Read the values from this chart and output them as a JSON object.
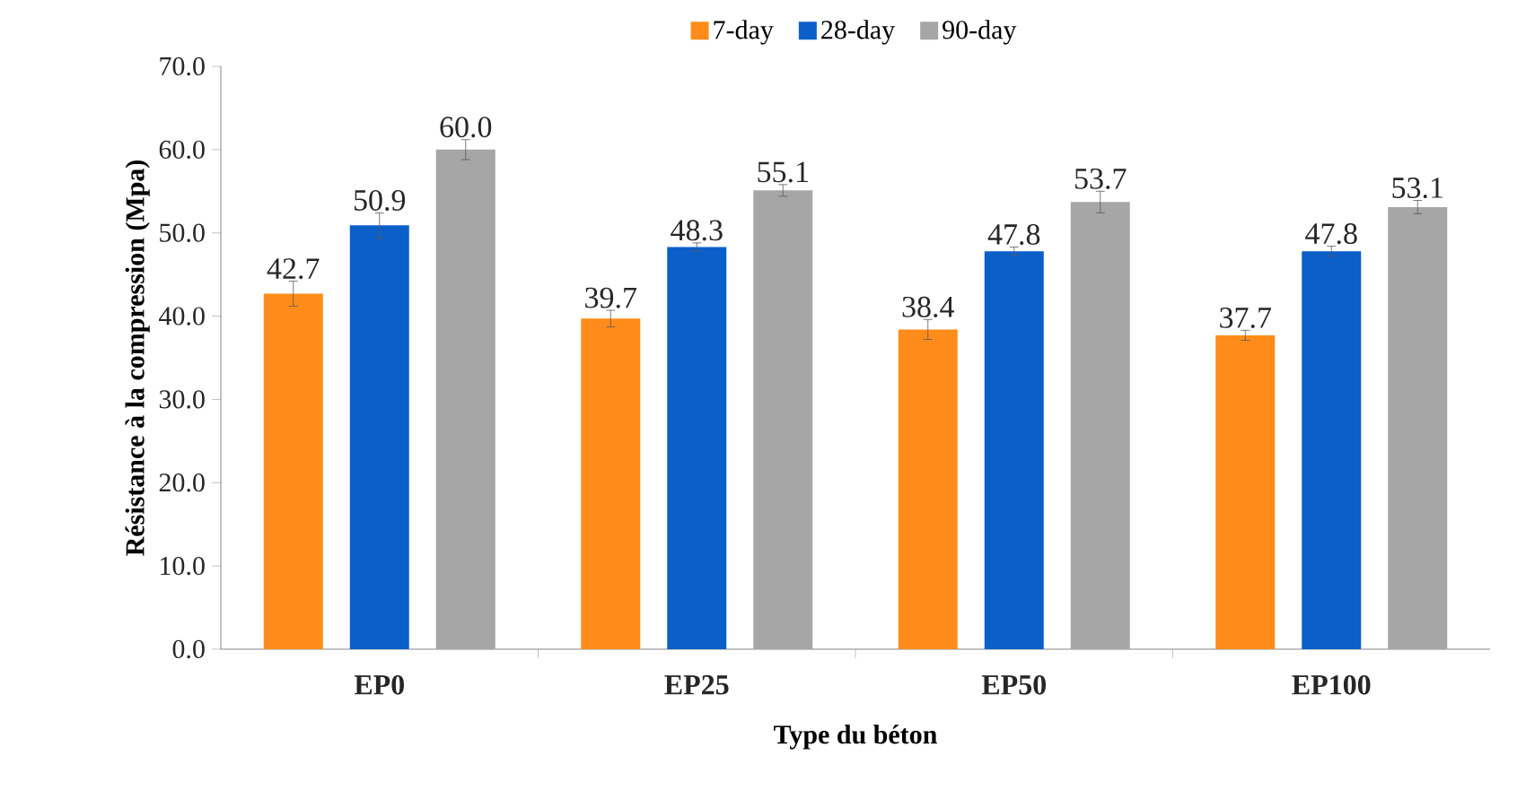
{
  "chart_data": {
    "type": "bar",
    "xlabel": "Type du béton",
    "ylabel": "Résistance à la compression (Mpa)",
    "categories": [
      "EP0",
      "EP25",
      "EP50",
      "EP100"
    ],
    "series": [
      {
        "name": "7-day",
        "color": "#ff8c1a",
        "values": [
          42.7,
          39.7,
          38.4,
          37.7
        ],
        "errors": [
          1.5,
          1.0,
          1.2,
          0.6
        ],
        "value_labels": [
          "42.7",
          "39.7",
          "38.4",
          "37.7"
        ]
      },
      {
        "name": "28-day",
        "color": "#0b5fc9",
        "values": [
          50.9,
          48.3,
          47.8,
          47.8
        ],
        "errors": [
          1.5,
          0.5,
          0.5,
          0.6
        ],
        "value_labels": [
          "50.9",
          "48.3",
          "47.8",
          "47.8"
        ]
      },
      {
        "name": "90-day",
        "color": "#a6a6a6",
        "values": [
          60.0,
          55.1,
          53.7,
          53.1
        ],
        "errors": [
          1.2,
          0.7,
          1.3,
          0.8
        ],
        "value_labels": [
          "60.0",
          "55.1",
          "53.7",
          "53.1"
        ]
      }
    ],
    "ylim": [
      0,
      70
    ],
    "yticks": [
      {
        "value": 0,
        "label": "0.0"
      },
      {
        "value": 10,
        "label": "10.0"
      },
      {
        "value": 20,
        "label": "20.0"
      },
      {
        "value": 30,
        "label": "30.0"
      },
      {
        "value": 40,
        "label": "40.0"
      },
      {
        "value": 50,
        "label": "50.0"
      },
      {
        "value": 60,
        "label": "60.0"
      },
      {
        "value": 70,
        "label": "70.0"
      }
    ],
    "grid": false,
    "legend": "top"
  }
}
